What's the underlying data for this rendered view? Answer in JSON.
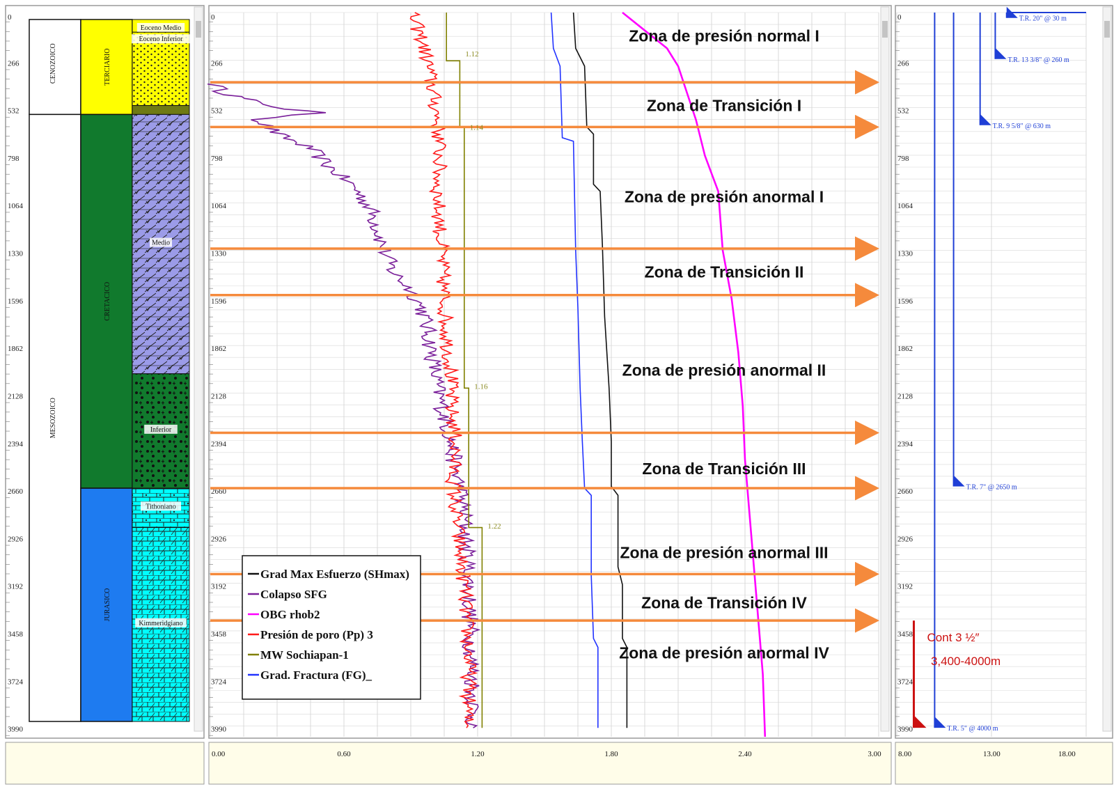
{
  "chart_data": {
    "type": "line",
    "depth_ticks": [
      "0",
      "266",
      "532",
      "798",
      "1064",
      "1330",
      "1596",
      "1862",
      "2128",
      "2394",
      "2660",
      "2926",
      "3192",
      "3458",
      "3724",
      "3990"
    ],
    "ylim": [
      0,
      4050
    ],
    "stratigraphy": {
      "eras": [
        {
          "name": "CENOZOICO",
          "top": 0,
          "bottom": 570
        },
        {
          "name": "MESOZOICO",
          "top": 570,
          "bottom": 4050
        }
      ],
      "periods": [
        {
          "name": "TERCIARIO",
          "top": 0,
          "bottom": 570,
          "color": "#ffff00"
        },
        {
          "name": "CRETACICO",
          "top": 570,
          "bottom": 2660,
          "color": "#117a2d"
        },
        {
          "name": "JURASICO",
          "top": 2660,
          "bottom": 4050,
          "color": "#1e7bf0"
        }
      ],
      "lithology": [
        {
          "label": "Eoceno Medio",
          "top": 0,
          "bottom": 110,
          "pattern": "yellow-plain"
        },
        {
          "label": "Eoceno Inferior",
          "top": 110,
          "bottom": 520,
          "pattern": "yellow-dots"
        },
        {
          "label": "",
          "top": 520,
          "bottom": 570,
          "pattern": "olive"
        },
        {
          "label": "Medio",
          "top": 570,
          "bottom": 2020,
          "pattern": "lavender-dolomite"
        },
        {
          "label": "Inferior",
          "top": 2020,
          "bottom": 2660,
          "pattern": "green-dots"
        },
        {
          "label": "Tithoniano",
          "top": 2660,
          "bottom": 2880,
          "pattern": "cyan-brick"
        },
        {
          "label": "Kimmeridgiano",
          "top": 2880,
          "bottom": 4050,
          "pattern": "cyan-dolomite"
        }
      ]
    },
    "xlim": [
      0,
      3.0
    ],
    "x_ticks": [
      "0.00",
      "0.60",
      "1.20",
      "1.80",
      "2.40",
      "3.00"
    ],
    "series": [
      {
        "name": "Grad Max Esfuerzo (SHmax)",
        "color": "#111111",
        "points": [
          [
            1.63,
            0
          ],
          [
            1.64,
            200
          ],
          [
            1.68,
            300
          ],
          [
            1.69,
            640
          ],
          [
            1.72,
            680
          ],
          [
            1.72,
            960
          ],
          [
            1.75,
            1000
          ],
          [
            1.76,
            1300
          ],
          [
            1.77,
            1700
          ],
          [
            1.79,
            2100
          ],
          [
            1.8,
            2400
          ],
          [
            1.8,
            2650
          ],
          [
            1.83,
            2700
          ],
          [
            1.83,
            3100
          ],
          [
            1.85,
            3200
          ],
          [
            1.85,
            3500
          ],
          [
            1.87,
            3550
          ],
          [
            1.87,
            4000
          ]
        ]
      },
      {
        "name": "Colapso SFG",
        "color": "#7a1f9a",
        "points": [
          [
            0.02,
            400
          ],
          [
            0.05,
            440
          ],
          [
            0.12,
            470
          ],
          [
            0.2,
            500
          ],
          [
            0.35,
            540
          ],
          [
            0.48,
            560
          ],
          [
            0.22,
            600
          ],
          [
            0.3,
            680
          ],
          [
            0.45,
            760
          ],
          [
            0.55,
            880
          ],
          [
            0.65,
            980
          ],
          [
            0.72,
            1100
          ],
          [
            0.75,
            1200
          ],
          [
            0.78,
            1330
          ],
          [
            0.82,
            1450
          ],
          [
            0.9,
            1550
          ],
          [
            0.95,
            1650
          ],
          [
            0.98,
            1800
          ],
          [
            1.0,
            1950
          ],
          [
            1.02,
            2100
          ],
          [
            1.05,
            2250
          ],
          [
            1.08,
            2400
          ],
          [
            1.1,
            2550
          ],
          [
            1.12,
            2650
          ],
          [
            1.14,
            2800
          ],
          [
            1.15,
            3000
          ],
          [
            1.16,
            3200
          ],
          [
            1.17,
            3500
          ],
          [
            1.18,
            3800
          ],
          [
            1.18,
            4000
          ]
        ]
      },
      {
        "name": "OBG rhob2",
        "color": "#ff00ff",
        "points": [
          [
            1.85,
            0
          ],
          [
            1.95,
            100
          ],
          [
            2.05,
            200
          ],
          [
            2.1,
            300
          ],
          [
            2.14,
            450
          ],
          [
            2.18,
            600
          ],
          [
            2.22,
            800
          ],
          [
            2.28,
            1000
          ],
          [
            2.3,
            1330
          ],
          [
            2.34,
            1600
          ],
          [
            2.37,
            1900
          ],
          [
            2.39,
            2200
          ],
          [
            2.4,
            2500
          ],
          [
            2.42,
            2800
          ],
          [
            2.44,
            3100
          ],
          [
            2.46,
            3400
          ],
          [
            2.48,
            3700
          ],
          [
            2.49,
            4050
          ]
        ]
      },
      {
        "name": "Presión de poro (Pp) 3",
        "color": "#ff1a1a",
        "points": [
          [
            0.9,
            0
          ],
          [
            0.95,
            150
          ],
          [
            0.98,
            300
          ],
          [
            1.0,
            450
          ],
          [
            1.02,
            600
          ],
          [
            1.03,
            800
          ],
          [
            1.02,
            1000
          ],
          [
            1.03,
            1200
          ],
          [
            1.04,
            1400
          ],
          [
            1.05,
            1600
          ],
          [
            1.06,
            1800
          ],
          [
            1.08,
            2000
          ],
          [
            1.08,
            2200
          ],
          [
            1.1,
            2400
          ],
          [
            1.09,
            2600
          ],
          [
            1.1,
            2800
          ],
          [
            1.12,
            3000
          ],
          [
            1.14,
            3200
          ],
          [
            1.15,
            3400
          ],
          [
            1.16,
            3600
          ],
          [
            1.16,
            3800
          ],
          [
            1.15,
            4000
          ]
        ]
      },
      {
        "name": "MW Sochiapan-1",
        "color": "#808000",
        "points": [
          [
            1.06,
            0
          ],
          [
            1.06,
            270
          ],
          [
            1.12,
            270
          ],
          [
            1.12,
            640
          ],
          [
            1.14,
            640
          ],
          [
            1.14,
            2100
          ],
          [
            1.16,
            2100
          ],
          [
            1.16,
            2880
          ],
          [
            1.22,
            2880
          ],
          [
            1.22,
            4000
          ]
        ]
      },
      {
        "name": "Grad. Fractura (FG)_",
        "color": "#2233ff",
        "points": [
          [
            1.53,
            0
          ],
          [
            1.54,
            200
          ],
          [
            1.57,
            300
          ],
          [
            1.58,
            700
          ],
          [
            1.63,
            720
          ],
          [
            1.64,
            1330
          ],
          [
            1.65,
            1650
          ],
          [
            1.66,
            2100
          ],
          [
            1.67,
            2400
          ],
          [
            1.68,
            2660
          ],
          [
            1.71,
            2700
          ],
          [
            1.71,
            3150
          ],
          [
            1.72,
            3500
          ],
          [
            1.74,
            3550
          ],
          [
            1.74,
            4000
          ]
        ]
      }
    ],
    "point_labels": [
      {
        "text": "1.12",
        "x": 1.12,
        "y": 230
      },
      {
        "text": "1.14",
        "x": 1.14,
        "y": 640
      },
      {
        "text": "1.16",
        "x": 1.16,
        "y": 2090
      },
      {
        "text": "1.22",
        "x": 1.22,
        "y": 2870
      }
    ],
    "zones": [
      {
        "label": "Zona de presión normal I",
        "y": 130
      },
      {
        "label": "Zona de Transición I",
        "y": 520
      },
      {
        "label": "Zona de presión anormal I",
        "y": 1030
      },
      {
        "label": "Zona de Transición II",
        "y": 1450
      },
      {
        "label": "Zona de presión anormal II",
        "y": 2000
      },
      {
        "label": "Zona de Transición III",
        "y": 2550
      },
      {
        "label": "Zona de presión anormal III",
        "y": 3020
      },
      {
        "label": "Zona de Transición IV",
        "y": 3300
      },
      {
        "label": "Zona de presión anormal IV",
        "y": 3580
      }
    ],
    "boundaries": [
      390,
      640,
      1320,
      1580,
      2350,
      2660,
      3140,
      3400
    ],
    "legend_position": "bottom-left",
    "casing": {
      "x_ticks": [
        "8.00",
        "13.00",
        "18.00"
      ],
      "xlim": [
        8,
        18
      ],
      "strings": [
        {
          "label": "T.R. 20\" @ 30 m",
          "size": 20,
          "depth": 30,
          "x": 13.8
        },
        {
          "label": "T.R. 13 3/8\" @ 260 m",
          "size": 13.375,
          "depth": 260,
          "x": 13.2
        },
        {
          "label": "T.R. 9 5/8\" @ 630 m",
          "size": 9.625,
          "depth": 630,
          "x": 12.4
        },
        {
          "label": "T.R. 7\" @ 2650 m",
          "size": 7,
          "depth": 2650,
          "x": 11.0
        },
        {
          "label": "T.R. 5\" @ 4000 m",
          "size": 5,
          "depth": 4000,
          "x": 10.0
        }
      ],
      "annotation": {
        "line1": "Cont 3 ½″",
        "line2": "3,400-4000m",
        "color": "#cc1111",
        "top": 3400,
        "bottom": 4000
      }
    }
  }
}
